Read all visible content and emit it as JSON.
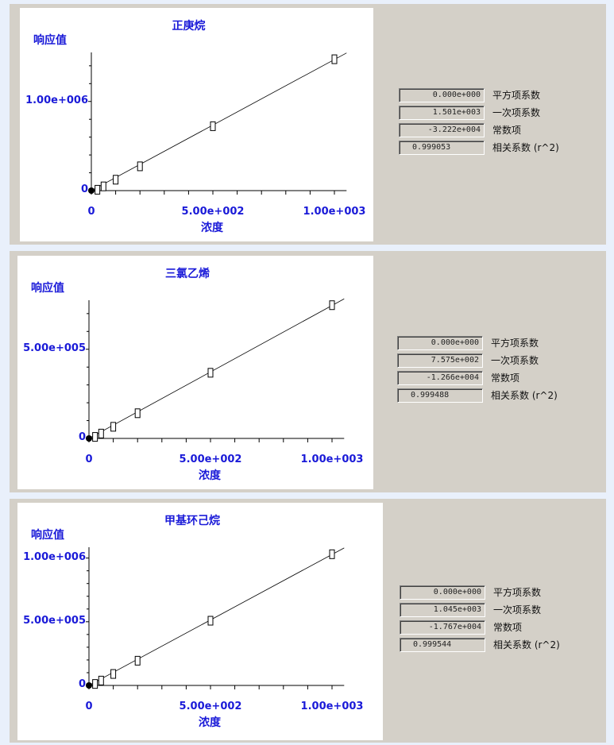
{
  "colors": {
    "background": "#e9f0fb",
    "panel": "#d4d0c8",
    "label_text": "#1a1ad8",
    "plot_line": "#000000"
  },
  "field_labels": [
    "平方项系数",
    "一次项系数",
    "常数项",
    "相关系数 (r^2)"
  ],
  "panels": [
    {
      "coefficients": [
        "0.000e+000",
        "1.501e+003",
        "-3.222e+004",
        "0.999053"
      ]
    },
    {
      "coefficients": [
        "0.000e+000",
        "7.575e+002",
        "-1.266e+004",
        "0.999488"
      ]
    },
    {
      "coefficients": [
        "0.000e+000",
        "1.045e+003",
        "-1.767e+004",
        "0.999544"
      ]
    }
  ],
  "chart_data": [
    {
      "type": "scatter",
      "title": "正庚烷",
      "ylabel": "响应值",
      "xlabel": "浓度",
      "xlim": [
        0,
        1050
      ],
      "ylim": [
        0,
        1550000
      ],
      "x_ticks": [
        "0",
        "5.00e+002",
        "1.00e+003"
      ],
      "x_tick_values": [
        0,
        500,
        1000
      ],
      "y_ticks": [
        "0",
        "1.00e+006"
      ],
      "y_tick_values": [
        0,
        1000000
      ],
      "y_minor_step": 200000,
      "x_minor_step": 100,
      "fit": {
        "slope": 1501,
        "intercept": -32220
      },
      "points": [
        {
          "x": 0,
          "y": 0
        },
        {
          "x": 25,
          "y": 5300
        },
        {
          "x": 50,
          "y": 43000
        },
        {
          "x": 100,
          "y": 118000
        },
        {
          "x": 200,
          "y": 268000
        },
        {
          "x": 500,
          "y": 718000
        },
        {
          "x": 1000,
          "y": 1469000
        }
      ]
    },
    {
      "type": "scatter",
      "title": "三氯乙烯",
      "ylabel": "响应值",
      "xlabel": "浓度",
      "xlim": [
        0,
        1050
      ],
      "ylim": [
        0,
        775000
      ],
      "x_ticks": [
        "0",
        "5.00e+002",
        "1.00e+003"
      ],
      "x_tick_values": [
        0,
        500,
        1000
      ],
      "y_ticks": [
        "0",
        "5.00e+005"
      ],
      "y_tick_values": [
        0,
        500000
      ],
      "y_minor_step": 100000,
      "x_minor_step": 100,
      "fit": {
        "slope": 757.5,
        "intercept": -12660
      },
      "points": [
        {
          "x": 0,
          "y": 0
        },
        {
          "x": 25,
          "y": 6300
        },
        {
          "x": 50,
          "y": 25000
        },
        {
          "x": 100,
          "y": 63000
        },
        {
          "x": 200,
          "y": 139000
        },
        {
          "x": 500,
          "y": 366000
        },
        {
          "x": 1000,
          "y": 745000
        }
      ]
    },
    {
      "type": "scatter",
      "title": "甲基环己烷",
      "ylabel": "响应值",
      "xlabel": "浓度",
      "xlim": [
        0,
        1050
      ],
      "ylim": [
        0,
        1085000
      ],
      "x_ticks": [
        "0",
        "5.00e+002",
        "1.00e+003"
      ],
      "x_tick_values": [
        0,
        500,
        1000
      ],
      "y_ticks": [
        "0",
        "5.00e+005",
        "1.00e+006"
      ],
      "y_tick_values": [
        0,
        500000,
        1000000
      ],
      "y_minor_step": 100000,
      "x_minor_step": 100,
      "fit": {
        "slope": 1045,
        "intercept": -17670
      },
      "points": [
        {
          "x": 0,
          "y": 0
        },
        {
          "x": 25,
          "y": 8500
        },
        {
          "x": 50,
          "y": 35000
        },
        {
          "x": 100,
          "y": 87000
        },
        {
          "x": 200,
          "y": 191000
        },
        {
          "x": 500,
          "y": 505000
        },
        {
          "x": 1000,
          "y": 1027000
        }
      ]
    }
  ]
}
